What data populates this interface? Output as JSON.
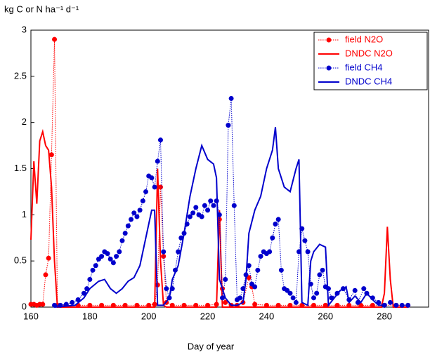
{
  "chart_data": {
    "type": "line",
    "y_label": "kg C or N ha⁻¹ d⁻¹",
    "x_label": "Day of year",
    "xlim": [
      160,
      295
    ],
    "xticks": [
      160,
      180,
      200,
      220,
      240,
      260,
      280
    ],
    "ylim": [
      0,
      3
    ],
    "yticks": [
      0,
      0.5,
      1,
      1.5,
      2,
      2.5,
      3
    ],
    "legend": "upper-right",
    "series": [
      {
        "name": "field N2O",
        "color": "#ff0000",
        "linestyle": "dotted",
        "marker": "circle",
        "x": [
          160,
          161,
          162,
          163,
          164,
          165,
          166,
          167,
          168,
          169,
          172,
          176,
          180,
          184,
          188,
          192,
          196,
          200,
          202,
          203,
          204,
          205,
          206,
          208,
          212,
          216,
          220,
          223,
          224,
          225,
          226,
          228,
          230,
          232,
          234,
          235,
          236,
          240,
          244,
          248,
          252,
          256,
          260,
          264,
          268,
          272,
          276,
          280,
          284,
          288
        ],
        "values": [
          0.03,
          0.03,
          0.02,
          0.03,
          0.03,
          0.35,
          0.53,
          1.65,
          2.9,
          0.02,
          0.02,
          0.02,
          0.02,
          0.02,
          0.02,
          0.02,
          0.02,
          0.02,
          0.03,
          0.24,
          1.3,
          0.55,
          0.05,
          0.02,
          0.02,
          0.02,
          0.02,
          0.03,
          0.95,
          0.2,
          0.05,
          0.02,
          0.02,
          0.05,
          0.32,
          0.22,
          0.03,
          0.02,
          0.02,
          0.02,
          0.02,
          0.02,
          0.02,
          0.02,
          0.02,
          0.02,
          0.02,
          0.02,
          0.02,
          0.02
        ]
      },
      {
        "name": "DNDC N2O",
        "color": "#ff0000",
        "linestyle": "solid",
        "marker": "none",
        "x": [
          160,
          161,
          162,
          163,
          164,
          165,
          166,
          167,
          168,
          169,
          202,
          203,
          204,
          205,
          206,
          223,
          224,
          225,
          279,
          280,
          281,
          282,
          283,
          288
        ],
        "values": [
          0.73,
          1.58,
          1.12,
          1.8,
          1.9,
          1.75,
          1.7,
          1.3,
          0.5,
          0,
          0,
          1.5,
          0.5,
          0.02,
          0,
          0,
          1.05,
          0,
          0,
          0.15,
          0.87,
          0.3,
          0,
          0
        ]
      },
      {
        "name": "field CH4",
        "color": "#0000cc",
        "linestyle": "dotted",
        "marker": "circle",
        "x": [
          168,
          170,
          172,
          174,
          176,
          178,
          179,
          180,
          181,
          182,
          183,
          184,
          185,
          186,
          187,
          188,
          189,
          190,
          191,
          192,
          193,
          194,
          195,
          196,
          197,
          198,
          199,
          200,
          201,
          202,
          203,
          204,
          205,
          206,
          207,
          208,
          209,
          210,
          211,
          212,
          213,
          214,
          215,
          216,
          217,
          218,
          219,
          220,
          221,
          222,
          223,
          224,
          225,
          226,
          227,
          228,
          229,
          230,
          231,
          232,
          233,
          234,
          235,
          236,
          237,
          238,
          239,
          240,
          241,
          242,
          243,
          244,
          245,
          246,
          247,
          248,
          249,
          250,
          251,
          252,
          253,
          254,
          255,
          256,
          257,
          258,
          259,
          260,
          261,
          262,
          264,
          266,
          268,
          270,
          271,
          273,
          274,
          276,
          278,
          280,
          282,
          284,
          286,
          288
        ],
        "values": [
          0.02,
          0.02,
          0.03,
          0.05,
          0.08,
          0.15,
          0.2,
          0.3,
          0.4,
          0.45,
          0.52,
          0.55,
          0.6,
          0.58,
          0.52,
          0.48,
          0.55,
          0.6,
          0.72,
          0.8,
          0.88,
          0.95,
          1.02,
          0.98,
          1.05,
          1.15,
          1.25,
          1.42,
          1.4,
          1.3,
          1.58,
          1.81,
          0.6,
          0.2,
          0.1,
          0.2,
          0.4,
          0.6,
          0.75,
          0.8,
          0.9,
          0.98,
          1.02,
          1.08,
          1.0,
          0.98,
          1.1,
          1.05,
          1.15,
          1.1,
          1.15,
          1.0,
          0.1,
          0.3,
          1.97,
          2.26,
          1.1,
          0.08,
          0.1,
          0.2,
          0.35,
          0.45,
          0.25,
          0.22,
          0.4,
          0.55,
          0.6,
          0.58,
          0.6,
          0.75,
          0.9,
          0.95,
          0.4,
          0.2,
          0.18,
          0.15,
          0.1,
          0.05,
          0.6,
          0.85,
          0.72,
          0.6,
          0.25,
          0.1,
          0.15,
          0.35,
          0.4,
          0.22,
          0.2,
          0.1,
          0.15,
          0.2,
          0.08,
          0.18,
          0.05,
          0.2,
          0.15,
          0.1,
          0.05,
          0.02,
          0.05,
          0.02,
          0.02,
          0.02
        ]
      },
      {
        "name": "DNDC CH4",
        "color": "#0000cc",
        "linestyle": "solid",
        "marker": "none",
        "x": [
          168,
          175,
          178,
          180,
          183,
          185,
          187,
          189,
          191,
          193,
          195,
          197,
          199,
          201,
          202,
          203,
          205,
          207,
          208,
          210,
          212,
          214,
          216,
          218,
          220,
          222,
          223,
          224,
          226,
          228,
          230,
          232,
          233,
          234,
          236,
          238,
          240,
          242,
          243,
          244,
          246,
          248,
          250,
          251,
          252,
          254,
          255,
          256,
          258,
          260,
          261,
          263,
          265,
          267,
          268,
          270,
          272,
          274,
          276,
          278,
          280
        ],
        "values": [
          0,
          0.02,
          0.1,
          0.2,
          0.28,
          0.3,
          0.2,
          0.15,
          0.2,
          0.28,
          0.32,
          0.45,
          0.75,
          1.05,
          1.05,
          0.02,
          0.02,
          0.1,
          0.3,
          0.45,
          0.8,
          1.2,
          1.5,
          1.75,
          1.6,
          1.55,
          1.4,
          0.3,
          0.1,
          0.02,
          0.02,
          0.05,
          0.3,
          0.8,
          1.05,
          1.2,
          1.5,
          1.7,
          1.95,
          1.5,
          1.3,
          1.25,
          1.5,
          1.6,
          0.05,
          0.02,
          0.5,
          0.6,
          0.68,
          0.65,
          0.02,
          0.1,
          0.18,
          0.22,
          0.05,
          0.12,
          0.05,
          0.15,
          0.08,
          0.02,
          0.02
        ]
      }
    ]
  }
}
